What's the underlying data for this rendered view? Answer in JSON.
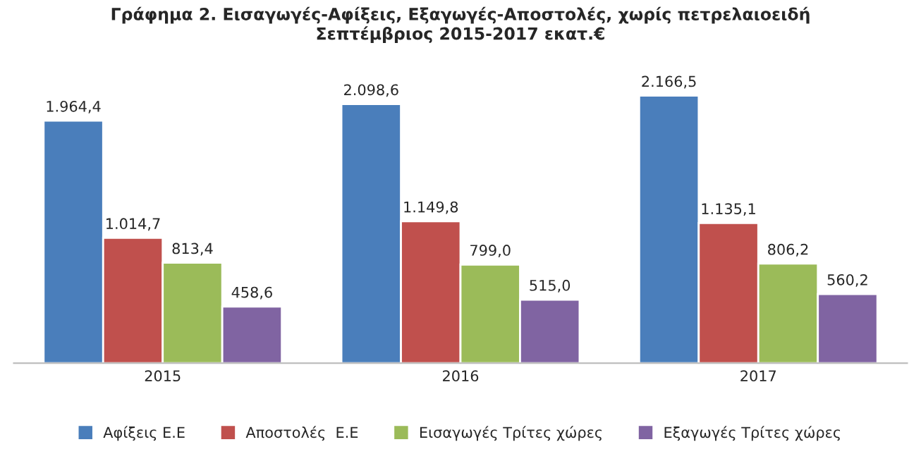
{
  "chart_data": {
    "type": "bar",
    "title": "Γράφημα 2. Εισαγωγές-Αφίξεις, Εξαγωγές-Αποστολές, χωρίς πετρελαιοειδή\nΣεπτέμβριος 2015-2017 εκατ.€",
    "categories": [
      "2015",
      "2016",
      "2017"
    ],
    "series": [
      {
        "name": "Αφίξεις Ε.Ε",
        "color": "#4a7ebb",
        "values": [
          1964.4,
          2098.6,
          2166.5
        ],
        "value_labels": [
          "1.964,4",
          "2.098,6",
          "2.166,5"
        ]
      },
      {
        "name": "Αποστολές  Ε.Ε",
        "color": "#c0504d",
        "values": [
          1014.7,
          1149.8,
          1135.1
        ],
        "value_labels": [
          "1.014,7",
          "1.149,8",
          "1.135,1"
        ]
      },
      {
        "name": "Εισαγωγές Τρίτες χώρες",
        "color": "#9bbb59",
        "values": [
          813.4,
          799.0,
          806.2
        ],
        "value_labels": [
          "813,4",
          "799,0",
          "806,2"
        ]
      },
      {
        "name": "Εξαγωγές Τρίτες χώρες",
        "color": "#8064a2",
        "values": [
          458.6,
          515.0,
          560.2
        ],
        "value_labels": [
          "458,6",
          "515,0",
          "560,2"
        ]
      }
    ],
    "tick_labels": "x",
    "grid": false,
    "legend": "bottom"
  }
}
